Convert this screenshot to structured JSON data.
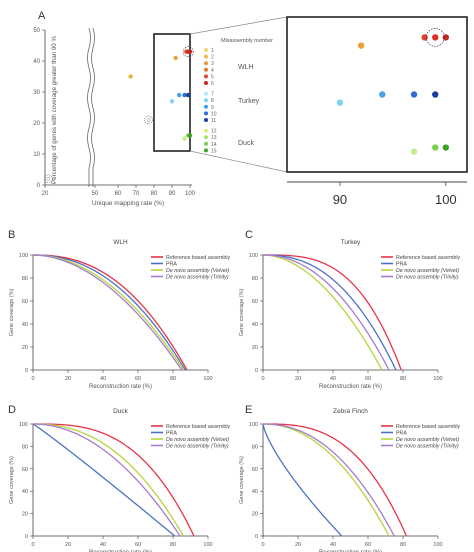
{
  "panel_letters": {
    "a": "A",
    "b": "B",
    "c": "C",
    "d": "D",
    "e": "E"
  },
  "legend_a": {
    "title": "Misassembly number",
    "groups": [
      "WLH",
      "Turkey",
      "Duck"
    ],
    "numbers": [
      "1",
      "2",
      "3",
      "4",
      "5",
      "6",
      "7",
      "8",
      "9",
      "10",
      "11",
      "12",
      "13",
      "14",
      "15"
    ]
  },
  "legend_curves": {
    "entries": [
      "Reference based assembly",
      "PRA",
      "De novo assembly (Velvet)",
      "De novo assembly (Trinity)"
    ],
    "entries_e": [
      "Reference based assembly",
      "PRA",
      "De novo assembly (Velvet)",
      "De novo assembly (Trinity)"
    ]
  },
  "colors": {
    "reference": "#e8334a",
    "pra": "#4a73c4",
    "velvet": "#b6d43a",
    "trinity": "#a67bd0",
    "axis": "#444444",
    "frame": "#222222"
  },
  "chart_data": [
    {
      "panel": "A",
      "type": "scatter",
      "title": "",
      "xlabel": "Unique mapping rate (%)",
      "ylabel": "Percentage of genes with coverage greater than 90 %",
      "xticks": [
        "20",
        "50",
        "60",
        "70",
        "80",
        "90",
        "100"
      ],
      "yticks": [
        "0",
        "10",
        "20",
        "30",
        "40",
        "50"
      ],
      "xlim": [
        20,
        100
      ],
      "ylim": [
        0,
        50
      ],
      "points": [
        {
          "x": 22,
          "y": 2,
          "color": "#ffffff",
          "group": "",
          "circled": true
        },
        {
          "x": 67,
          "y": 35,
          "color": "#e8b53a",
          "group": "WLH"
        },
        {
          "x": 77,
          "y": 21,
          "color": "#ffffff",
          "group": "",
          "circled": true
        },
        {
          "x": 92,
          "y": 41,
          "color": "#e8a03a",
          "group": "WLH"
        },
        {
          "x": 98,
          "y": 43,
          "color": "#e04030",
          "group": "WLH"
        },
        {
          "x": 99,
          "y": 43,
          "color": "#d93020",
          "group": "WLH"
        },
        {
          "x": 100,
          "y": 43,
          "color": "#c42a20",
          "group": "WLH"
        },
        {
          "x": 90,
          "y": 27,
          "color": "#7fd3f2",
          "group": "Turkey"
        },
        {
          "x": 94,
          "y": 29,
          "color": "#4aa0e0",
          "group": "Turkey"
        },
        {
          "x": 97,
          "y": 29,
          "color": "#2f6ecf",
          "group": "Turkey"
        },
        {
          "x": 99,
          "y": 29,
          "color": "#1b3fa0",
          "group": "Turkey"
        },
        {
          "x": 97,
          "y": 15,
          "color": "#c8ec8c",
          "group": "Duck"
        },
        {
          "x": 99,
          "y": 16,
          "color": "#7ad04e",
          "group": "Duck"
        },
        {
          "x": 100,
          "y": 16,
          "color": "#3aa32a",
          "group": "Duck"
        }
      ]
    },
    {
      "panel": "A-inset",
      "type": "scatter",
      "xticks": [
        "90",
        "100"
      ],
      "xlim": [
        85,
        102
      ]
    },
    {
      "panel": "B",
      "type": "line",
      "title": "WLH",
      "xlabel": "Reconstruction rate (%)",
      "ylabel": "Gene coverage (%)",
      "xticks": [
        "0",
        "20",
        "40",
        "60",
        "80",
        "100"
      ],
      "yticks": [
        "0",
        "20",
        "40",
        "60",
        "80",
        "100"
      ],
      "xlim": [
        0,
        100
      ],
      "ylim": [
        0,
        100
      ],
      "series": [
        {
          "name": "Reference based assembly",
          "key": "reference",
          "end": 88,
          "shape": 2.4
        },
        {
          "name": "PRA",
          "key": "pra",
          "end": 87,
          "shape": 2.2
        },
        {
          "name": "De novo assembly (Velvet)",
          "key": "velvet",
          "end": 86,
          "shape": 2.0
        },
        {
          "name": "De novo assembly (Trinity)",
          "key": "trinity",
          "end": 85,
          "shape": 1.9
        }
      ]
    },
    {
      "panel": "C",
      "type": "line",
      "title": "Turkey",
      "xlabel": "Reconstruction rate (%)",
      "ylabel": "Gene coverage (%)",
      "xticks": [
        "0",
        "20",
        "40",
        "60",
        "80",
        "100"
      ],
      "yticks": [
        "0",
        "20",
        "40",
        "60",
        "80",
        "100"
      ],
      "xlim": [
        0,
        100
      ],
      "ylim": [
        0,
        100
      ],
      "series": [
        {
          "name": "Reference based assembly",
          "key": "reference",
          "end": 79,
          "shape": 3.2
        },
        {
          "name": "PRA",
          "key": "pra",
          "end": 76,
          "shape": 2.4
        },
        {
          "name": "De novo assembly (Velvet)",
          "key": "velvet",
          "end": 68,
          "shape": 1.9
        },
        {
          "name": "De novo assembly (Trinity)",
          "key": "trinity",
          "end": 72,
          "shape": 2.1
        }
      ]
    },
    {
      "panel": "D",
      "type": "line",
      "title": "Duck",
      "xlabel": "Reconstruction rate (%)",
      "ylabel": "Gene coverage (%)",
      "xticks": [
        "0",
        "20",
        "40",
        "60",
        "80",
        "100"
      ],
      "yticks": [
        "0",
        "20",
        "40",
        "60",
        "80",
        "100"
      ],
      "xlim": [
        0,
        100
      ],
      "ylim": [
        0,
        100
      ],
      "series": [
        {
          "name": "Reference based assembly",
          "key": "reference",
          "end": 92,
          "shape": 3.0
        },
        {
          "name": "PRA",
          "key": "pra",
          "end": 81,
          "shape": 1.05
        },
        {
          "name": "De novo assembly (Velvet)",
          "key": "velvet",
          "end": 86,
          "shape": 2.3
        },
        {
          "name": "De novo assembly (Trinity)",
          "key": "trinity",
          "end": 84,
          "shape": 2.0
        }
      ]
    },
    {
      "panel": "E",
      "type": "line",
      "title": "Zebra Finch",
      "xlabel": "Reconstruction rate (%)",
      "ylabel": "Gene coverage (%)",
      "xticks": [
        "0",
        "20",
        "40",
        "60",
        "80",
        "100"
      ],
      "yticks": [
        "0",
        "20",
        "40",
        "60",
        "80",
        "100"
      ],
      "xlim": [
        0,
        100
      ],
      "ylim": [
        0,
        100
      ],
      "series": [
        {
          "name": "Reference based assembly",
          "key": "reference",
          "end": 82,
          "shape": 2.9
        },
        {
          "name": "PRA",
          "key": "pra",
          "end": 45,
          "shape": 0.75
        },
        {
          "name": "De novo assembly (Velvet)",
          "key": "velvet",
          "end": 72,
          "shape": 2.1
        },
        {
          "name": "De novo assembly (Trinity)",
          "key": "trinity",
          "end": 75,
          "shape": 2.2
        }
      ]
    }
  ]
}
